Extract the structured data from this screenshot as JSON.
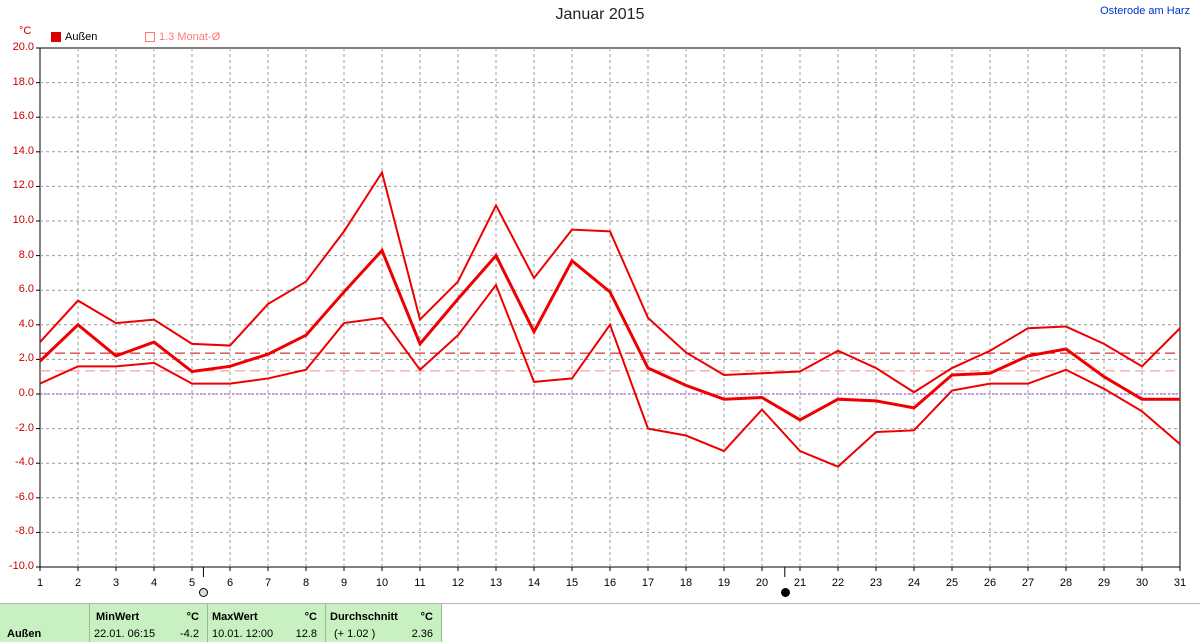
{
  "header": {
    "title": "Januar 2015",
    "location": "Osterode am Harz",
    "unit": "°C",
    "legend": [
      {
        "label": "Außen",
        "color": "#dd0000"
      },
      {
        "label": "1.3 Monat-Ø",
        "color": "#ff7777"
      }
    ]
  },
  "chart_data": {
    "type": "line",
    "x": [
      1,
      2,
      3,
      4,
      5,
      6,
      7,
      8,
      9,
      10,
      11,
      12,
      13,
      14,
      15,
      16,
      17,
      18,
      19,
      20,
      21,
      22,
      23,
      24,
      25,
      26,
      27,
      28,
      29,
      30,
      31
    ],
    "ylim": [
      -10,
      20
    ],
    "yticks": [
      "20.0",
      "18.0",
      "16.0",
      "14.0",
      "12.0",
      "10.0",
      "8.0",
      "6.0",
      "4.0",
      "2.0",
      "0.0",
      "-2.0",
      "-4.0",
      "-6.0",
      "-8.0",
      "-10.0"
    ],
    "grid": true,
    "legend_position": "top-left",
    "series": [
      {
        "name": "Außen",
        "role": "max",
        "values": [
          3.0,
          5.4,
          4.1,
          4.3,
          2.9,
          2.8,
          5.2,
          6.5,
          9.4,
          12.8,
          4.3,
          6.5,
          10.9,
          6.7,
          9.5,
          9.4,
          4.4,
          2.4,
          1.1,
          1.2,
          1.3,
          2.5,
          1.5,
          0.1,
          1.5,
          2.5,
          3.8,
          3.9,
          2.9,
          1.6,
          3.8
        ]
      },
      {
        "name": "Außen",
        "role": "mean",
        "values": [
          1.9,
          4.0,
          2.2,
          3.0,
          1.3,
          1.6,
          2.3,
          3.4,
          5.9,
          8.3,
          2.9,
          5.5,
          8.0,
          3.6,
          7.7,
          5.9,
          1.5,
          0.5,
          -0.3,
          -0.2,
          -1.5,
          -0.3,
          -0.4,
          -0.8,
          1.1,
          1.2,
          2.2,
          2.6,
          1.0,
          -0.3,
          -0.3
        ]
      },
      {
        "name": "Außen",
        "role": "min",
        "values": [
          0.6,
          1.6,
          1.6,
          1.8,
          0.6,
          0.6,
          0.9,
          1.4,
          4.1,
          4.4,
          1.4,
          3.4,
          6.3,
          0.7,
          0.9,
          4.0,
          -2.0,
          -2.4,
          -3.3,
          -0.9,
          -3.3,
          -4.2,
          -2.2,
          -2.1,
          0.2,
          0.6,
          0.6,
          1.4,
          0.3,
          -1.0,
          -2.9
        ]
      }
    ],
    "reference_lines": [
      {
        "label": "Durchschnitt",
        "value": 2.36,
        "style": "dashed",
        "color": "#cc0000"
      },
      {
        "label": "1.3 Monat-Ø",
        "value": 1.34,
        "style": "dashed",
        "color": "#ff8888"
      },
      {
        "label": "0",
        "value": 0,
        "style": "dotted",
        "color": "#9933cc"
      }
    ],
    "moon_phases": [
      {
        "day": 5.3,
        "phase": "full"
      },
      {
        "day": 20.6,
        "phase": "new"
      }
    ]
  },
  "footer": {
    "row_label": "Außen",
    "min": {
      "header": "MinWert",
      "unit": "°C",
      "datetime": "22.01.  06:15",
      "value": "-4.2"
    },
    "max": {
      "header": "MaxWert",
      "unit": "°C",
      "datetime": "10.01.  12:00",
      "value": "12.8"
    },
    "avg": {
      "header": "Durchschnitt",
      "unit": "°C",
      "delta": "(+ 1.02 )",
      "value": "2.36"
    }
  }
}
